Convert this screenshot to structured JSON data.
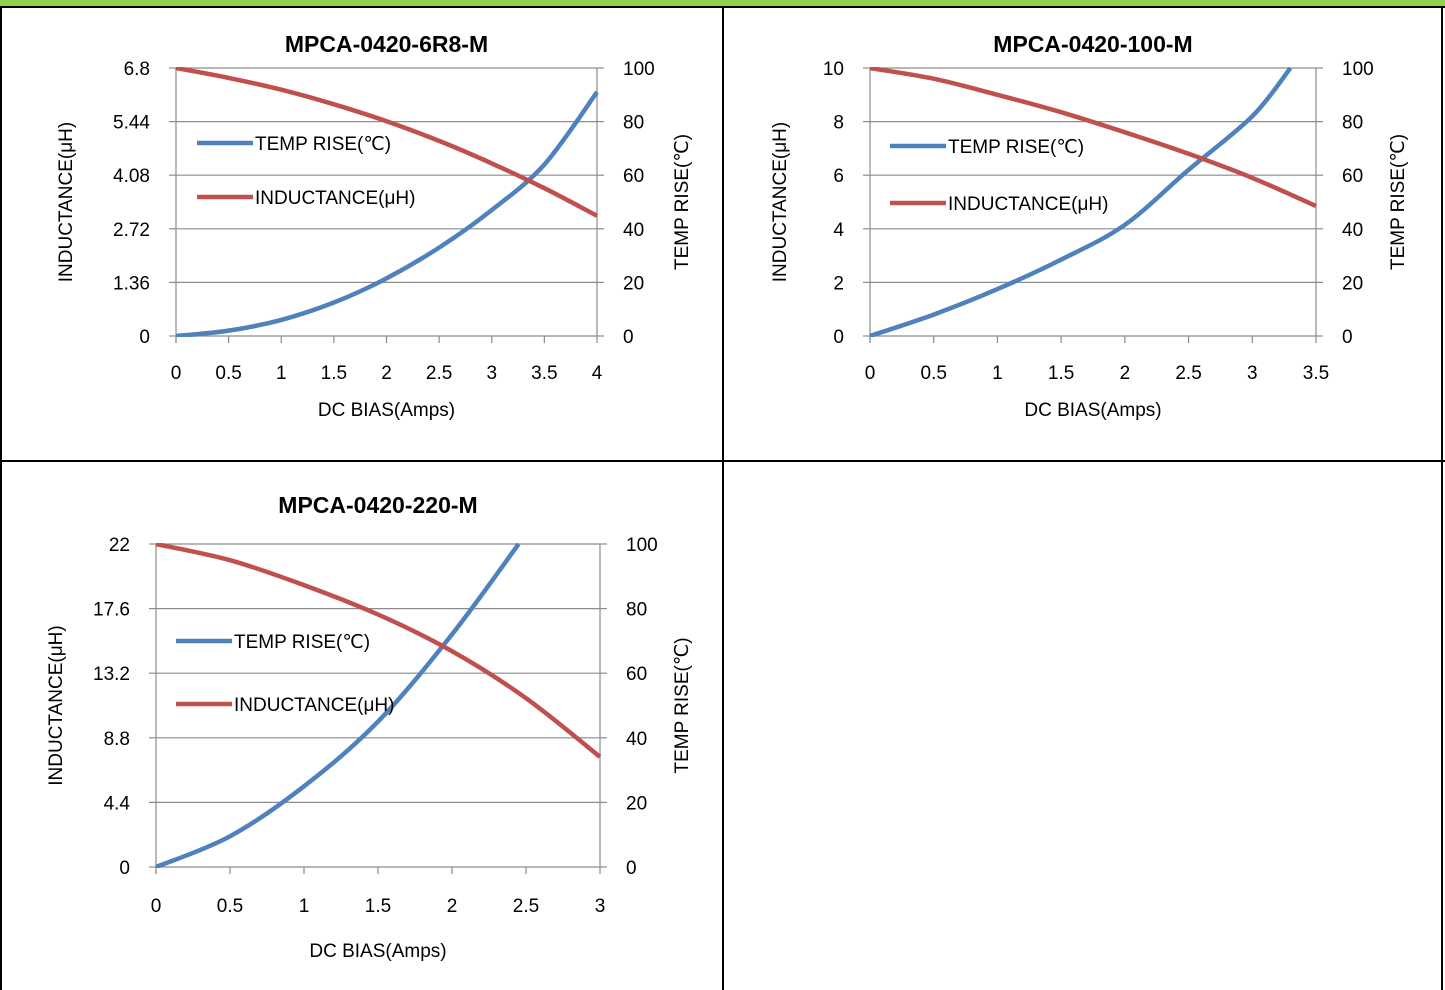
{
  "theme": {
    "temp_color": "#4f81bd",
    "inductance_color": "#c0504d",
    "grid_color": "#8c8c8c",
    "frame_accent": "#92d050"
  },
  "chart_data": [
    {
      "type": "line",
      "title": "MPCA-0420-6R8-M",
      "xlabel": "DC  BIAS(Amps)",
      "ylabel_left": "INDUCTANCE(μH)",
      "ylabel_right": "TEMP RISE(℃)",
      "xlim": [
        0,
        4
      ],
      "xticks": [
        "0",
        "0.5",
        "1",
        "1.5",
        "2",
        "2.5",
        "3",
        "3.5",
        "4"
      ],
      "ylim_left": [
        0,
        6.8
      ],
      "yticks_left": [
        "0",
        "1.36",
        "2.72",
        "4.08",
        "5.44",
        "6.8"
      ],
      "ylim_right": [
        0,
        100
      ],
      "yticks_right": [
        "0",
        "20",
        "40",
        "60",
        "80",
        "100"
      ],
      "grid": true,
      "legend_position": "left",
      "series": [
        {
          "name": "TEMP RISE(℃)",
          "axis": "right",
          "color": "#4f81bd",
          "x": [
            0,
            0.5,
            1,
            1.5,
            2,
            2.5,
            3,
            3.5,
            4
          ],
          "y": [
            0,
            2,
            6,
            12.5,
            21.5,
            33,
            47,
            64,
            91
          ]
        },
        {
          "name": "INDUCTANCE(μH)",
          "axis": "left",
          "color": "#c0504d",
          "x": [
            0,
            0.5,
            1,
            1.5,
            2,
            2.5,
            3,
            3.5,
            4
          ],
          "y": [
            6.8,
            6.55,
            6.25,
            5.88,
            5.45,
            4.95,
            4.38,
            3.75,
            3.05
          ]
        }
      ]
    },
    {
      "type": "line",
      "title": "MPCA-0420-100-M",
      "xlabel": "DC  BIAS(Amps)",
      "ylabel_left": "INDUCTANCE(μH)",
      "ylabel_right": "TEMP RISE(℃)",
      "xlim": [
        0,
        3.5
      ],
      "xticks": [
        "0",
        "0.5",
        "1",
        "1.5",
        "2",
        "2.5",
        "3",
        "3.5"
      ],
      "ylim_left": [
        0,
        10
      ],
      "yticks_left": [
        "0",
        "2",
        "4",
        "6",
        "8",
        "10"
      ],
      "ylim_right": [
        0,
        100
      ],
      "yticks_right": [
        "0",
        "20",
        "40",
        "60",
        "80",
        "100"
      ],
      "grid": true,
      "legend_position": "left",
      "series": [
        {
          "name": "TEMP RISE(℃)",
          "axis": "right",
          "color": "#4f81bd",
          "x": [
            0,
            0.5,
            1,
            1.5,
            2,
            2.5,
            3,
            3.3
          ],
          "y": [
            0,
            8,
            17.5,
            28.5,
            41.5,
            62,
            82,
            100
          ]
        },
        {
          "name": "INDUCTANCE(μH)",
          "axis": "left",
          "color": "#c0504d",
          "x": [
            0,
            0.5,
            1,
            1.5,
            2,
            2.5,
            3,
            3.5
          ],
          "y": [
            10,
            9.6,
            9.0,
            8.35,
            7.6,
            6.8,
            5.9,
            4.85
          ]
        }
      ]
    },
    {
      "type": "line",
      "title": "MPCA-0420-220-M",
      "xlabel": "DC  BIAS(Amps)",
      "ylabel_left": "INDUCTANCE(μH)",
      "ylabel_right": "TEMP RISE(℃)",
      "xlim": [
        0,
        3
      ],
      "xticks": [
        "0",
        "0.5",
        "1",
        "1.5",
        "2",
        "2.5",
        "3"
      ],
      "ylim_left": [
        0,
        22
      ],
      "yticks_left": [
        "0",
        "4.4",
        "8.8",
        "13.2",
        "17.6",
        "22"
      ],
      "ylim_right": [
        0,
        100
      ],
      "yticks_right": [
        "0",
        "20",
        "40",
        "60",
        "80",
        "100"
      ],
      "grid": true,
      "legend_position": "left",
      "series": [
        {
          "name": "TEMP RISE(℃)",
          "axis": "right",
          "color": "#4f81bd",
          "x": [
            0,
            0.5,
            1,
            1.5,
            2,
            2.45
          ],
          "y": [
            0,
            9.5,
            25,
            45,
            72,
            100
          ]
        },
        {
          "name": "INDUCTANCE(μH)",
          "axis": "left",
          "color": "#c0504d",
          "x": [
            0,
            0.5,
            1,
            1.5,
            2,
            2.5,
            3
          ],
          "y": [
            22,
            20.9,
            19.2,
            17.2,
            14.7,
            11.5,
            7.5
          ]
        }
      ]
    }
  ]
}
